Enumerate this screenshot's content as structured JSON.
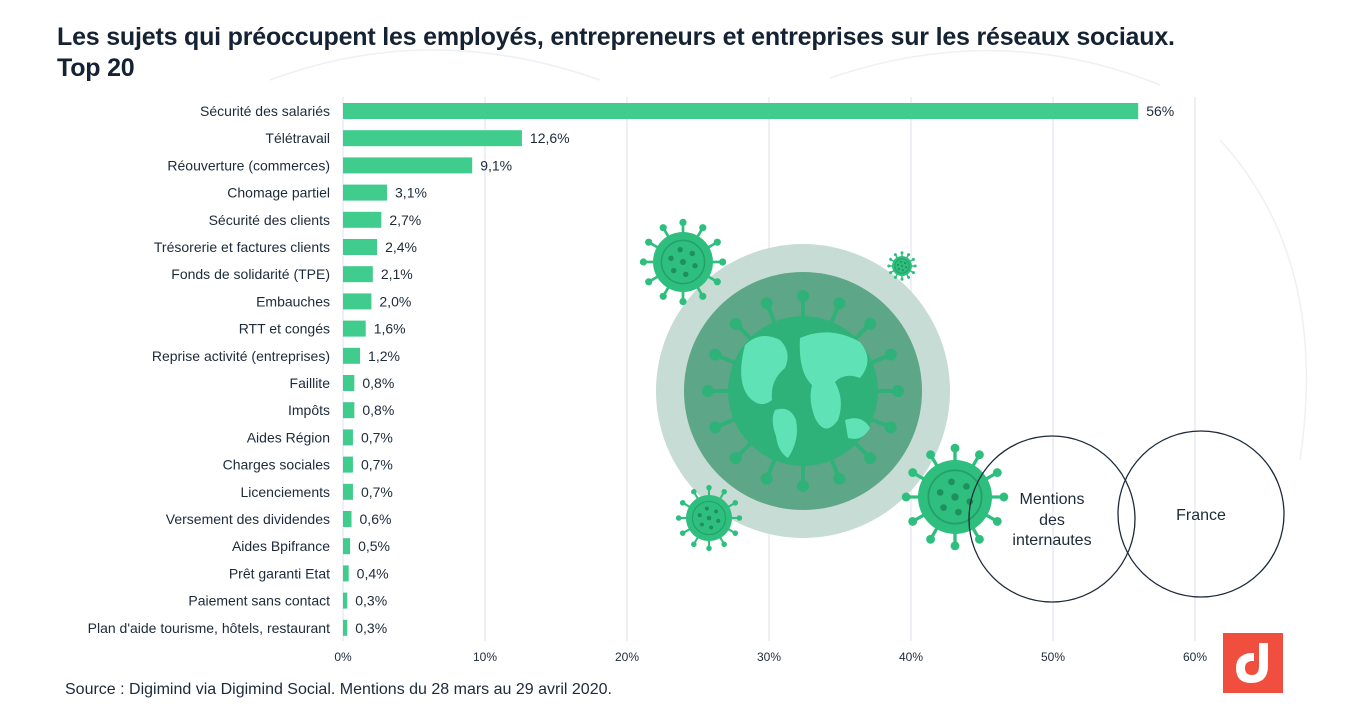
{
  "title_line1": "Les sujets qui préoccupent les employés, entrepreneurs et entreprises sur les réseaux sociaux.",
  "title_line2": "Top 20",
  "source": "Source : Digimind via Digimind Social. Mentions du 28 mars au 29 avril 2020.",
  "venn": {
    "left_label": [
      "Mentions",
      "des",
      "internautes"
    ],
    "right_label": "France"
  },
  "colors": {
    "bar": "#3fcc8c",
    "title": "#142233",
    "grid": "#dfe2ec",
    "logo": "#f04e3e",
    "virus": "#2ebf7e"
  },
  "chart_data": {
    "type": "bar",
    "orientation": "horizontal",
    "categories": [
      "Sécurité des salariés",
      "Télétravail",
      "Réouverture (commerces)",
      "Chomage partiel",
      "Sécurité des clients",
      "Trésorerie et factures clients",
      "Fonds de solidarité (TPE)",
      "Embauches",
      "RTT et congés",
      "Reprise activité (entreprises)",
      "Faillite",
      "Impôts",
      "Aides Région",
      "Charges sociales",
      "Licenciements",
      "Versement des dividendes",
      "Aides Bpifrance",
      "Prêt garanti Etat",
      "Paiement sans contact",
      "Plan d'aide tourisme, hôtels, restaurant"
    ],
    "values": [
      56,
      12.6,
      9.1,
      3.1,
      2.7,
      2.4,
      2.1,
      2.0,
      1.6,
      1.2,
      0.8,
      0.8,
      0.7,
      0.7,
      0.7,
      0.6,
      0.5,
      0.4,
      0.3,
      0.3
    ],
    "value_labels": [
      "56%",
      "12,6%",
      "9,1%",
      "3,1%",
      "2,7%",
      "2,4%",
      "2,1%",
      "2,0%",
      "1,6%",
      "1,2%",
      "0,8%",
      "0,8%",
      "0,7%",
      "0,7%",
      "0,7%",
      "0,6%",
      "0,5%",
      "0,4%",
      "0,3%",
      "0,3%"
    ],
    "xticks": [
      0,
      10,
      20,
      30,
      40,
      50,
      60
    ],
    "xtick_labels": [
      "0%",
      "10%",
      "20%",
      "30%",
      "40%",
      "50%",
      "60%"
    ],
    "xlim": [
      0,
      60
    ],
    "grid": true
  }
}
